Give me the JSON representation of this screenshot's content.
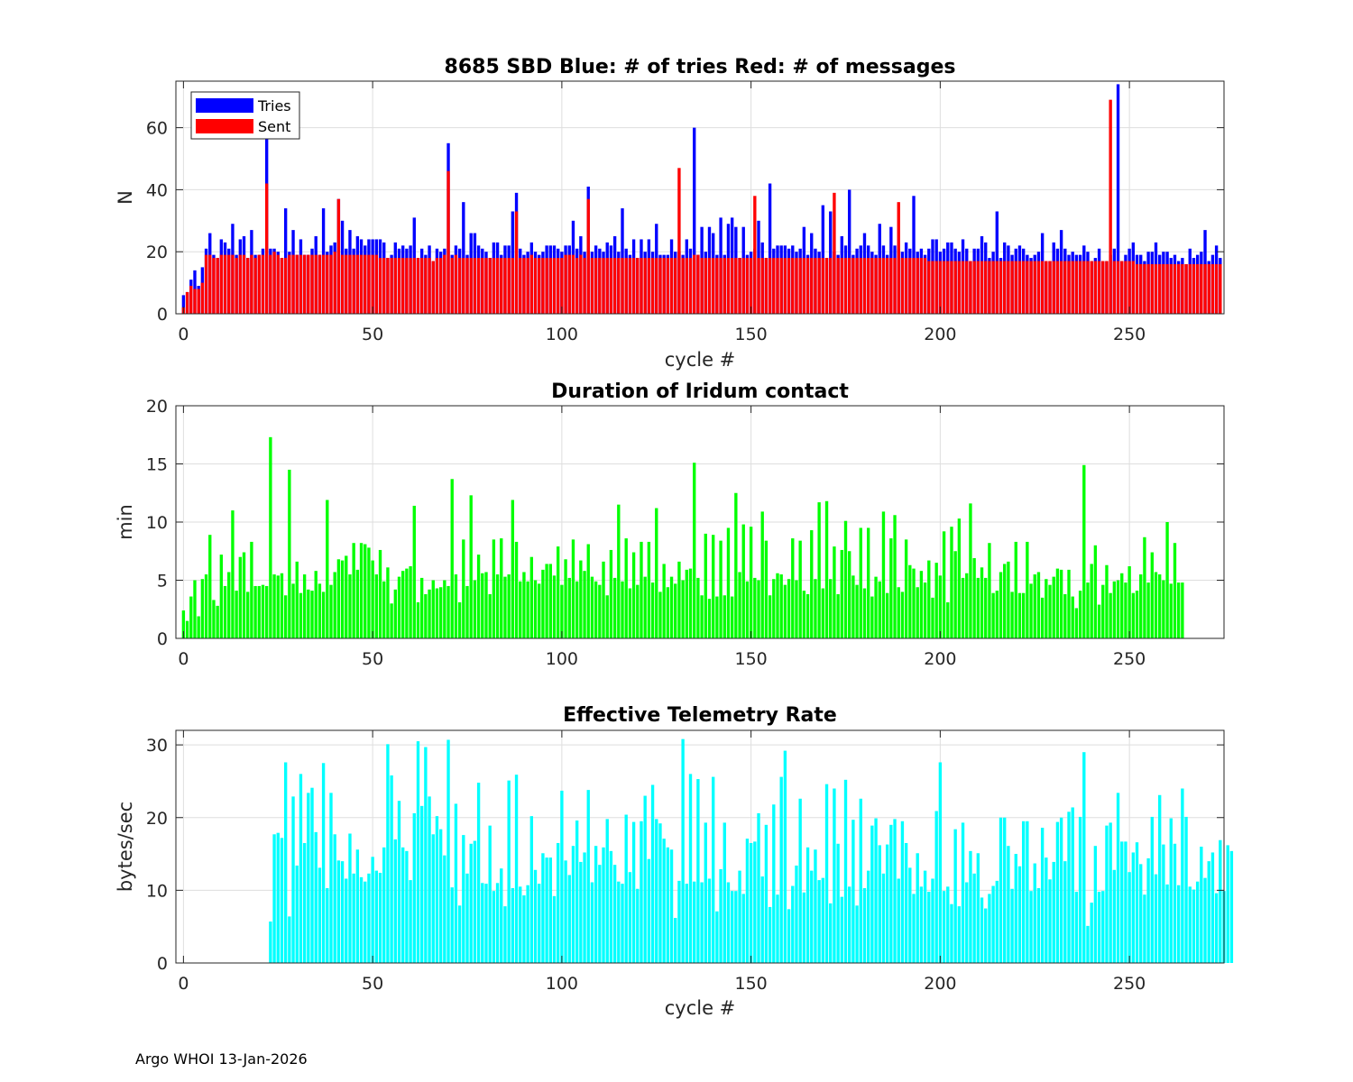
{
  "footer": "Argo WHOI 13-Jan-2026",
  "chart_data": [
    {
      "type": "bar",
      "title": "8685 SBD  Blue: # of tries   Red: # of messages",
      "xlabel": "cycle #",
      "ylabel": "N",
      "xlim": [
        -2,
        275
      ],
      "ylim": [
        0,
        75
      ],
      "xticks": [
        0,
        50,
        100,
        150,
        200,
        250
      ],
      "yticks": [
        0,
        20,
        40,
        60
      ],
      "grid": true,
      "legend": {
        "position": "top-left",
        "entries": [
          "Tries",
          "Sent"
        ]
      },
      "series": [
        {
          "name": "Tries",
          "color": "#0000ff",
          "x_start": 0,
          "values": [
            6,
            7,
            11,
            14,
            9,
            15,
            21,
            26,
            19,
            18,
            24,
            23,
            21,
            29,
            19,
            24,
            25,
            18,
            27,
            19,
            19,
            21,
            57,
            21,
            21,
            20,
            18,
            34,
            20,
            27,
            19,
            24,
            19,
            19,
            21,
            25,
            19,
            34,
            20,
            22,
            23,
            37,
            30,
            21,
            27,
            21,
            25,
            24,
            22,
            24,
            24,
            24,
            24,
            23,
            18,
            19,
            23,
            21,
            22,
            21,
            22,
            31,
            18,
            21,
            19,
            22,
            17,
            21,
            20,
            21,
            55,
            19,
            22,
            21,
            36,
            19,
            26,
            26,
            22,
            21,
            20,
            18,
            23,
            23,
            19,
            22,
            22,
            33,
            39,
            21,
            19,
            20,
            23,
            20,
            19,
            20,
            22,
            22,
            22,
            21,
            20,
            22,
            22,
            30,
            21,
            25,
            20,
            41,
            20,
            22,
            21,
            20,
            23,
            22,
            25,
            20,
            34,
            21,
            19,
            24,
            18,
            24,
            20,
            24,
            20,
            29,
            19,
            19,
            19,
            24,
            20,
            20,
            19,
            24,
            21,
            60,
            19,
            28,
            20,
            28,
            26,
            19,
            31,
            19,
            29,
            31,
            28,
            18,
            28,
            19,
            20,
            21,
            30,
            23,
            18,
            42,
            21,
            22,
            22,
            22,
            21,
            22,
            20,
            21,
            28,
            19,
            26,
            21,
            20,
            35,
            18,
            33,
            20,
            19,
            25,
            22,
            40,
            19,
            21,
            22,
            26,
            22,
            20,
            19,
            29,
            22,
            19,
            28,
            22,
            21,
            20,
            23,
            21,
            38,
            20,
            21,
            19,
            21,
            24,
            24,
            20,
            21,
            23,
            23,
            21,
            20,
            24,
            21,
            17,
            21,
            21,
            25,
            23,
            18,
            20,
            33,
            18,
            23,
            22,
            19,
            21,
            22,
            21,
            19,
            18,
            19,
            20,
            26,
            17,
            17,
            23,
            21,
            27,
            21,
            19,
            20,
            19,
            19,
            22,
            20,
            17,
            18,
            21,
            17,
            17,
            19,
            21,
            74,
            17,
            19,
            21,
            23,
            19,
            19,
            17,
            20,
            20,
            23,
            19,
            20,
            20,
            18,
            19,
            17,
            18,
            16,
            21,
            18,
            19,
            20,
            27,
            17,
            19,
            22,
            18
          ]
        },
        {
          "name": "Sent",
          "color": "#ff0000",
          "x_start": 0,
          "values": [
            2,
            7,
            9,
            8,
            8,
            10,
            19,
            19,
            18,
            18,
            19,
            19,
            19,
            19,
            18,
            19,
            19,
            18,
            19,
            18,
            19,
            19,
            42,
            19,
            20,
            19,
            18,
            18,
            19,
            19,
            19,
            19,
            19,
            19,
            19,
            19,
            19,
            19,
            19,
            19,
            20,
            37,
            19,
            19,
            19,
            19,
            19,
            19,
            19,
            19,
            19,
            19,
            18,
            18,
            18,
            18,
            18,
            18,
            18,
            18,
            18,
            18,
            18,
            18,
            18,
            18,
            17,
            18,
            18,
            19,
            46,
            18,
            19,
            18,
            18,
            18,
            18,
            18,
            18,
            18,
            18,
            18,
            18,
            18,
            18,
            18,
            18,
            18,
            33,
            18,
            18,
            18,
            19,
            18,
            18,
            18,
            18,
            18,
            18,
            18,
            18,
            19,
            19,
            19,
            18,
            19,
            18,
            37,
            18,
            18,
            18,
            18,
            18,
            18,
            18,
            18,
            18,
            18,
            18,
            18,
            18,
            18,
            18,
            18,
            18,
            18,
            18,
            18,
            18,
            18,
            18,
            47,
            18,
            18,
            18,
            19,
            19,
            18,
            18,
            18,
            18,
            18,
            18,
            18,
            18,
            18,
            18,
            18,
            18,
            18,
            18,
            38,
            18,
            18,
            18,
            18,
            18,
            18,
            18,
            18,
            18,
            18,
            18,
            18,
            18,
            18,
            18,
            18,
            18,
            18,
            18,
            18,
            39,
            18,
            18,
            18,
            18,
            18,
            18,
            18,
            18,
            18,
            18,
            18,
            18,
            18,
            18,
            18,
            18,
            36,
            18,
            18,
            18,
            18,
            18,
            18,
            18,
            17,
            17,
            17,
            17,
            17,
            17,
            17,
            17,
            17,
            17,
            17,
            17,
            17,
            17,
            17,
            17,
            17,
            17,
            17,
            17,
            17,
            17,
            17,
            17,
            17,
            17,
            17,
            17,
            17,
            17,
            17,
            17,
            17,
            17,
            17,
            17,
            17,
            17,
            17,
            17,
            17,
            17,
            17,
            17,
            17,
            17,
            17,
            17,
            69,
            17,
            17,
            17,
            17,
            17,
            17,
            16,
            16,
            16,
            16,
            16,
            16,
            16,
            16,
            16,
            16,
            16,
            16,
            16,
            16,
            16,
            16,
            16,
            16,
            16,
            16,
            16,
            16,
            16
          ]
        }
      ]
    },
    {
      "type": "bar",
      "title": "Duration of Iridum contact",
      "xlabel": "",
      "ylabel": "min",
      "xlim": [
        -2,
        275
      ],
      "ylim": [
        0,
        20
      ],
      "xticks": [
        0,
        50,
        100,
        150,
        200,
        250
      ],
      "yticks": [
        0,
        5,
        10,
        15,
        20
      ],
      "grid": true,
      "series": [
        {
          "name": "Duration",
          "color": "#00ff00",
          "x_start": 0,
          "values": [
            2.4,
            1.5,
            3.6,
            5,
            1.9,
            5.1,
            5.5,
            8.9,
            3.3,
            2.8,
            7.2,
            4.5,
            5.7,
            11,
            4.1,
            7,
            7.4,
            4,
            8.3,
            4.5,
            4.5,
            4.6,
            4.5,
            17.3,
            5.5,
            5.4,
            5.6,
            3.7,
            14.5,
            4.7,
            6.6,
            3.9,
            5.5,
            4.2,
            4.1,
            5.8,
            4.7,
            4,
            11.9,
            4.6,
            5.7,
            6.8,
            6.7,
            7.1,
            5.5,
            8.2,
            5.9,
            8.2,
            8.1,
            7.8,
            6.7,
            5.5,
            7.6,
            4.9,
            6.1,
            3,
            4.2,
            5.3,
            5.8,
            6,
            6.2,
            11.4,
            3.1,
            5.2,
            3.8,
            4.2,
            5,
            4.3,
            4.4,
            5,
            4.5,
            13.7,
            5.5,
            3.1,
            8.5,
            4.5,
            12.3,
            5,
            7.2,
            5.6,
            5.7,
            3.8,
            8.5,
            5.5,
            8.6,
            5.3,
            5.5,
            11.9,
            8.3,
            4.9,
            5.7,
            4.9,
            7,
            5,
            4.7,
            5.9,
            6.4,
            6.4,
            5.4,
            7.9,
            4.6,
            6.8,
            5.2,
            8.5,
            4.9,
            6.7,
            5.8,
            8.1,
            5.3,
            4.9,
            4.6,
            6.6,
            3.7,
            7.6,
            5.2,
            11.5,
            4.9,
            8.6,
            4.3,
            7.4,
            4.6,
            8.3,
            5.3,
            8.3,
            4.8,
            11.2,
            4,
            6.4,
            4.4,
            5.3,
            4.7,
            6.6,
            5,
            5.9,
            6,
            15.1,
            5.2,
            3.7,
            9,
            3.4,
            8.9,
            3.6,
            8.4,
            3.7,
            9.5,
            3.6,
            12.5,
            5.7,
            9.8,
            4.9,
            9.6,
            5.2,
            5,
            10.9,
            8.4,
            3.7,
            5.1,
            5.6,
            5.5,
            4.6,
            5.1,
            8.6,
            5,
            8.4,
            4.1,
            3.8,
            9.3,
            5.1,
            11.7,
            4.3,
            11.8,
            5.1,
            7.9,
            3.8,
            7.6,
            10.1,
            7.5,
            5.4,
            4.6,
            9.5,
            4.3,
            9.5,
            3.6,
            5.3,
            4.9,
            10.9,
            3.9,
            8.6,
            10.6,
            4.4,
            4,
            8.5,
            6.3,
            6,
            4.4,
            5.8,
            4.8,
            6.7,
            3.5,
            6.5,
            5.4,
            9.2,
            3.1,
            9.6,
            7.5,
            10.3,
            5.2,
            5.6,
            11.6,
            6.9,
            5.2,
            6.1,
            5.2,
            8.2,
            3.9,
            4.1,
            5.7,
            6.4,
            6.6,
            4,
            8.3,
            3.9,
            3.9,
            8.3,
            4.7,
            5.5,
            5.7,
            3.5,
            5.1,
            4.6,
            5.3,
            6,
            5.9,
            3.8,
            5.9,
            3.6,
            2.6,
            4.1,
            14.9,
            4.8,
            6.4,
            8,
            2.9,
            4.6,
            6.3,
            3.9,
            4.9,
            5,
            5.6,
            4.8,
            6.2,
            3.9,
            4.1,
            5.5,
            8.7,
            4.8,
            7.4,
            5.7,
            5.5,
            5,
            10,
            4.7,
            8.2,
            4.8,
            4.8
          ]
        }
      ]
    },
    {
      "type": "bar",
      "title": "Effective Telemetry Rate",
      "xlabel": "cycle #",
      "ylabel": "bytes/sec",
      "xlim": [
        -2,
        275
      ],
      "ylim": [
        0,
        32
      ],
      "xticks": [
        0,
        50,
        100,
        150,
        200,
        250
      ],
      "yticks": [
        0,
        10,
        20,
        30
      ],
      "grid": true,
      "series": [
        {
          "name": "Rate",
          "color": "#00ffff",
          "x_start": 23,
          "values": [
            5.7,
            17.7,
            17.9,
            17.2,
            27.6,
            6.4,
            22.9,
            13.4,
            26,
            16.5,
            23.4,
            24.1,
            18,
            13.1,
            27.5,
            10.3,
            23.4,
            17.7,
            14.1,
            14,
            11.6,
            17.8,
            12.3,
            15.6,
            11.8,
            11.2,
            12.3,
            14.6,
            12.7,
            12.4,
            15.9,
            30.1,
            25.8,
            17,
            22.3,
            15.9,
            15.4,
            11.4,
            20.6,
            30.5,
            21.6,
            29.7,
            22.9,
            17.7,
            20.2,
            18.4,
            14.8,
            30.7,
            10.4,
            21.9,
            7.9,
            17.6,
            12.3,
            16.4,
            16.8,
            24.8,
            11,
            10.9,
            18.9,
            9.9,
            11,
            13,
            7.8,
            25.1,
            10.3,
            25.9,
            10.5,
            9.3,
            10.7,
            20.2,
            12.8,
            10.9,
            15.1,
            14.5,
            14.5,
            9.2,
            16.5,
            23.7,
            14.1,
            12.1,
            16.1,
            19.6,
            13.9,
            15.2,
            23.8,
            11.1,
            16.1,
            13.5,
            15.9,
            19.8,
            15.4,
            13.5,
            11.2,
            10.9,
            20.4,
            12.5,
            19.4,
            10.2,
            19.5,
            23,
            14.3,
            24.5,
            19.8,
            19.2,
            17.1,
            15.9,
            15.6,
            6.2,
            11.3,
            30.8,
            10.9,
            26,
            11.2,
            25.3,
            11.1,
            19.3,
            11.6,
            25.6,
            7.1,
            12.9,
            19.3,
            11.1,
            9.9,
            9.9,
            12.7,
            9.5,
            17.1,
            16.5,
            16.7,
            20.6,
            11.9,
            19,
            7.7,
            21.8,
            9.4,
            25.6,
            29.2,
            7.4,
            10.6,
            13.4,
            22.6,
            9.7,
            15.9,
            12.7,
            15.6,
            11.4,
            11.7,
            24.6,
            8.2,
            24,
            16.4,
            9.1,
            25.2,
            10.5,
            19.7,
            7.9,
            22.6,
            10.3,
            12.7,
            18.9,
            19.9,
            16.2,
            12.3,
            16.3,
            19,
            19.8,
            11.6,
            19.5,
            16.5,
            13.1,
            9.5,
            15.1,
            10.5,
            12.7,
            9.8,
            11.6,
            20.9,
            27.6,
            9.9,
            10.5,
            8.1,
            18.4,
            7.8,
            19.3,
            11.1,
            15.4,
            12.3,
            15.1,
            9,
            7.5,
            9.5,
            10.6,
            11.3,
            20,
            20,
            16.1,
            10.2,
            15,
            13.3,
            19.5,
            19.5,
            9.9,
            13.7,
            10.3,
            18.6,
            14.5,
            11.5,
            13.9,
            19.4,
            20,
            14,
            20.8,
            21.4,
            9.8,
            20.1,
            29,
            5.1,
            8.3,
            16.1,
            9.8,
            9.9,
            18.9,
            19.3,
            12.8,
            23.4,
            16.7,
            16.7,
            12.5,
            15.2,
            16.6,
            13.6,
            9.4,
            14.4,
            20.1,
            12.2,
            23.1,
            16.3,
            10.8,
            19.9,
            16.4,
            10.7,
            24,
            20.1,
            10.5,
            10.1,
            11.2,
            16,
            11.7,
            14,
            15.2,
            9.6,
            16.9,
            9.9,
            16.2,
            15.4
          ]
        }
      ]
    }
  ]
}
